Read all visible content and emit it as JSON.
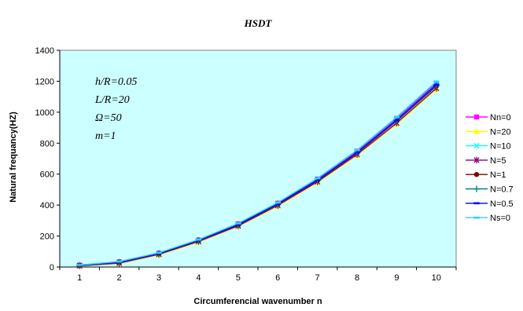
{
  "chart_data": {
    "type": "line",
    "title": "HSDT",
    "xlabel": "Circumferencial wavenumber n",
    "ylabel": "Natural frequancy(HZ)",
    "categories": [
      "1",
      "2",
      "3",
      "4",
      "5",
      "6",
      "7",
      "8",
      "9",
      "10"
    ],
    "ylim": [
      0,
      1400
    ],
    "yticks": [
      "0",
      "200",
      "400",
      "600",
      "800",
      "1000",
      "1200",
      "1400"
    ],
    "grid": false,
    "plot_background": "#ccffff",
    "legend_position": "right",
    "annotations": [
      "h/R=0.05",
      "L/R=20",
      "Ω=50",
      "m=1"
    ],
    "series": [
      {
        "name": "Nn=0",
        "color": "#ff00ff",
        "marker": "square",
        "values": [
          12,
          34,
          90,
          175,
          279,
          412,
          568,
          748,
          960,
          1188
        ]
      },
      {
        "name": "N=20",
        "color": "#ffff00",
        "marker": "triangle",
        "values": [
          7,
          22,
          78,
          160,
          262,
          392,
          545,
          720,
          922,
          1145
        ]
      },
      {
        "name": "N=10",
        "color": "#00ffff",
        "marker": "x",
        "values": [
          10,
          31,
          88,
          172,
          275,
          408,
          563,
          742,
          952,
          1180
        ]
      },
      {
        "name": "N=5",
        "color": "#800080",
        "marker": "star",
        "values": [
          8,
          25,
          82,
          165,
          266,
          398,
          551,
          727,
          930,
          1155
        ]
      },
      {
        "name": "N=1",
        "color": "#800000",
        "marker": "circle",
        "values": [
          9,
          29,
          86,
          170,
          271,
          404,
          558,
          736,
          943,
          1168
        ]
      },
      {
        "name": "N=0.7",
        "color": "#008080",
        "marker": "plus",
        "values": [
          10,
          30,
          87,
          171,
          273,
          406,
          560,
          739,
          947,
          1173
        ]
      },
      {
        "name": "N=0.5",
        "color": "#0000ff",
        "marker": "dash",
        "values": [
          11,
          31,
          88,
          172,
          274,
          408,
          562,
          741,
          950,
          1178
        ]
      },
      {
        "name": "Ns=0",
        "color": "#33ccff",
        "marker": "dash",
        "values": [
          13,
          35,
          92,
          177,
          282,
          416,
          573,
          755,
          968,
          1198
        ]
      }
    ]
  }
}
